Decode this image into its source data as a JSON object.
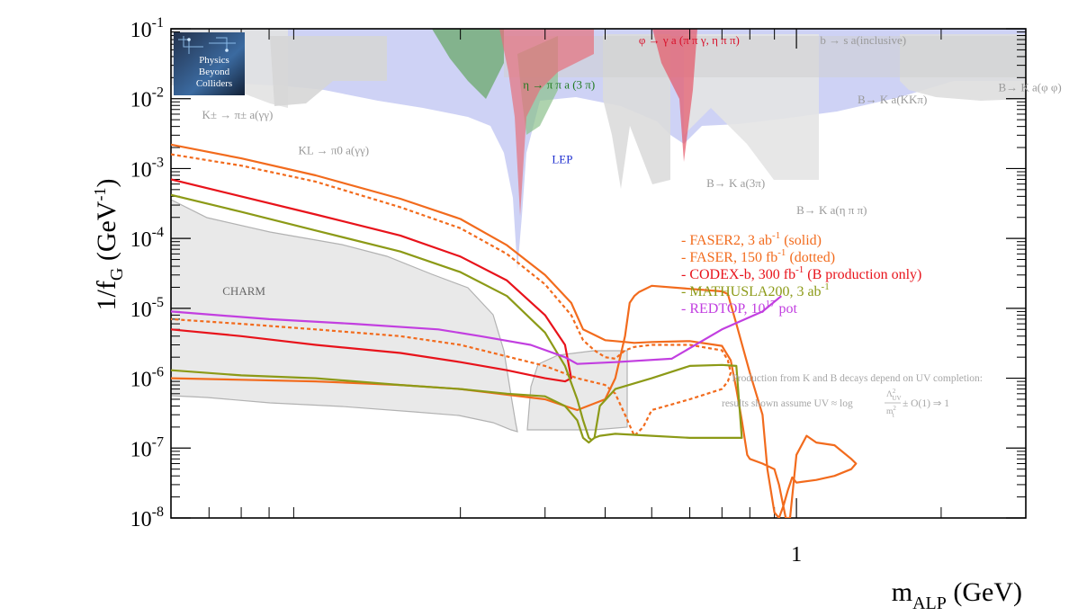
{
  "chart_data": {
    "type": "line",
    "x_axis": {
      "label_main": "m",
      "label_sub": "ALP",
      "label_unit": " (GeV)",
      "scale": "log",
      "range": [
        0.05,
        3.0
      ],
      "major_ticks": [
        1
      ],
      "major_tick_labels": [
        "1"
      ],
      "minor_ticks": [
        0.06,
        0.07,
        0.08,
        0.09,
        0.2,
        0.3,
        0.4,
        0.5,
        0.6,
        0.7,
        0.8,
        0.9,
        2,
        3
      ]
    },
    "y_axis": {
      "label_main": "1/f",
      "label_sub": "G",
      "label_unit_pre": " (GeV",
      "label_unit_sup": "-1",
      "label_unit_post": ")",
      "scale": "log",
      "range": [
        1e-08,
        0.1
      ],
      "tick_values": [
        1e-08,
        1e-07,
        1e-06,
        1e-05,
        0.0001,
        0.001,
        0.01,
        0.1
      ],
      "tick_exponents": [
        "-8",
        "-7",
        "-6",
        "-5",
        "-4",
        "-3",
        "-2",
        "-1"
      ],
      "tick_base": "10"
    },
    "regions": [
      {
        "label": "LEP",
        "color": "#c7cbf5"
      },
      {
        "label": "CHARM",
        "color": "#e9e9e9"
      }
    ],
    "region_labels": [
      {
        "text": "K± → π± a(γγ)",
        "x": 0.058,
        "y": 0.0052,
        "color": "#9a9a9a"
      },
      {
        "text": "KL → π0 a(γγ)",
        "x": 0.092,
        "y": 0.0016,
        "color": "#9a9a9a"
      },
      {
        "text": "η → π π a (3 π)",
        "x": 0.27,
        "y": 0.014,
        "color": "#1f7a1f"
      },
      {
        "text": "φ → γ a (π π γ, η π π)",
        "x": 0.47,
        "y": 0.06,
        "color": "#d8102a"
      },
      {
        "text": "b → s a(inclusive)",
        "x": 1.12,
        "y": 0.06,
        "color": "#9a9a9a"
      },
      {
        "text": "B→ K a(KKπ)",
        "x": 1.34,
        "y": 0.0085,
        "color": "#9a9a9a"
      },
      {
        "text": "B→ K a(φ φ)",
        "x": 2.63,
        "y": 0.0127,
        "color": "#9a9a9a"
      },
      {
        "text": "B→ K a(3π)",
        "x": 0.65,
        "y": 0.00054,
        "color": "#9a9a9a"
      },
      {
        "text": "B→ K a(η π π)",
        "x": 1.0,
        "y": 0.000225,
        "color": "#9a9a9a"
      },
      {
        "text": "LEP",
        "x": 0.31,
        "y": 0.0012,
        "color": "#2030d0"
      },
      {
        "text": "CHARM",
        "x": 0.064,
        "y": 1.55e-05,
        "color": "#666666"
      }
    ],
    "series": [
      {
        "name": "FASER2, 3 ab",
        "sup": "-1",
        "suffix": " (solid)",
        "color": "#f26b1d",
        "style": "solid",
        "x": [
          0.05,
          0.07,
          0.1,
          0.15,
          0.2,
          0.25,
          0.3,
          0.34,
          0.36,
          0.4,
          0.42,
          0.44,
          0.46,
          0.5,
          0.6,
          0.7,
          0.73,
          0.75,
          0.77,
          0.79,
          0.8,
          0.85,
          0.9,
          0.92,
          0.95,
          0.97,
          1.0,
          1.05,
          1.1,
          1.2,
          1.3,
          1.33,
          1.3,
          1.2,
          1.1,
          1.0,
          0.98,
          0.96,
          0.94,
          0.92,
          0.9,
          0.87,
          0.85,
          0.8,
          0.75,
          0.72,
          0.7,
          0.6,
          0.5,
          0.47,
          0.46,
          0.45,
          0.44,
          0.42,
          0.4,
          0.35,
          0.3,
          0.2,
          0.15,
          0.1,
          0.07,
          0.05
        ],
        "y": [
          0.0022,
          0.0014,
          0.0008,
          0.00037,
          0.00019,
          8e-05,
          3e-05,
          1.2e-05,
          5e-06,
          3.5e-06,
          3.4e-06,
          3.3e-06,
          3.2e-06,
          3.3e-06,
          3.4e-06,
          2.9e-06,
          1.8e-06,
          7e-07,
          2.5e-07,
          8e-08,
          7e-08,
          6e-08,
          5e-08,
          3e-08,
          1e-08,
          1e-08,
          8e-08,
          1.5e-07,
          1.2e-07,
          1.1e-07,
          7e-08,
          6e-08,
          5e-08,
          4e-08,
          3.5e-08,
          3.2e-08,
          3.8e-08,
          2.5e-08,
          1.5e-08,
          1e-08,
          1.2e-08,
          5e-08,
          3e-07,
          1.2e-06,
          6e-06,
          1.6e-05,
          1.75e-05,
          1.9e-05,
          2.1e-05,
          1.7e-05,
          1.5e-05,
          1.2e-05,
          4e-06,
          1e-06,
          5e-07,
          3.5e-07,
          5e-07,
          7e-07,
          8e-07,
          9e-07,
          9.5e-07,
          1e-06
        ]
      },
      {
        "name": "FASER, 150 fb",
        "sup": "-1",
        "suffix": " (dotted)",
        "color": "#f26b1d",
        "style": "dotted",
        "x": [
          0.05,
          0.07,
          0.1,
          0.15,
          0.2,
          0.25,
          0.3,
          0.34,
          0.36,
          0.38,
          0.4,
          0.42,
          0.43,
          0.44,
          0.46,
          0.5,
          0.6,
          0.7,
          0.72,
          0.73,
          0.72,
          0.7,
          0.6,
          0.5,
          0.48,
          0.46,
          0.44,
          0.42,
          0.4,
          0.35,
          0.3,
          0.2,
          0.15,
          0.1,
          0.07,
          0.05
        ],
        "y": [
          0.0016,
          0.0011,
          0.00065,
          0.00028,
          0.00014,
          6e-05,
          2.2e-05,
          8e-06,
          3.5e-06,
          2.5e-06,
          2e-06,
          1.9e-06,
          2.2e-06,
          2.5e-06,
          2.8e-06,
          3e-06,
          3e-06,
          2.5e-06,
          1.8e-06,
          1.2e-06,
          9e-07,
          7e-07,
          5e-07,
          3.5e-07,
          2e-07,
          1.5e-07,
          3e-07,
          6e-07,
          8e-07,
          1e-06,
          1.5e-06,
          3e-06,
          4e-06,
          5e-06,
          6e-06,
          7e-06
        ]
      },
      {
        "name": "CODEX-b, 300 fb",
        "sup": "-1",
        "suffix": " (B production only)",
        "color": "#e8131b",
        "style": "solid",
        "x": [
          0.05,
          0.07,
          0.1,
          0.15,
          0.2,
          0.25,
          0.3,
          0.33,
          0.34,
          0.33,
          0.3,
          0.25,
          0.2,
          0.15,
          0.1,
          0.07,
          0.05
        ],
        "y": [
          0.0007,
          0.0004,
          0.00022,
          0.00011,
          5.5e-05,
          2.5e-05,
          8e-06,
          3e-06,
          1e-06,
          9e-07,
          1e-06,
          1.3e-06,
          1.7e-06,
          2.3e-06,
          3e-06,
          4e-06,
          5e-06
        ]
      },
      {
        "name": "MATHUSLA200, 3 ab",
        "sup": "-1",
        "suffix": "",
        "color": "#8c9a17",
        "style": "solid",
        "x": [
          0.05,
          0.07,
          0.1,
          0.15,
          0.2,
          0.25,
          0.3,
          0.33,
          0.35,
          0.36,
          0.37,
          0.375,
          0.38,
          0.39,
          0.42,
          0.5,
          0.6,
          0.7,
          0.75,
          0.77,
          0.75,
          0.7,
          0.6,
          0.5,
          0.42,
          0.39,
          0.38,
          0.375,
          0.37,
          0.36,
          0.35,
          0.33,
          0.3,
          0.25,
          0.2,
          0.15,
          0.1,
          0.07,
          0.05
        ],
        "y": [
          0.00042,
          0.00024,
          0.00013,
          6.5e-05,
          3.3e-05,
          1.5e-05,
          4.5e-06,
          1.5e-06,
          5e-07,
          2.5e-07,
          1.4e-07,
          1.3e-07,
          1.4e-07,
          4e-07,
          7e-07,
          1e-06,
          1.5e-06,
          1.55e-06,
          1.5e-06,
          1.4e-07,
          1.4e-07,
          1.4e-07,
          1.4e-07,
          1.5e-07,
          1.6e-07,
          1.5e-07,
          1.4e-07,
          1.3e-07,
          1.2e-07,
          1.4e-07,
          2.5e-07,
          4e-07,
          5.5e-07,
          6e-07,
          7e-07,
          8e-07,
          1e-06,
          1.1e-06,
          1.3e-06
        ]
      },
      {
        "name": "REDTOP, 10",
        "sup": "17",
        "suffix": " pot",
        "color": "#c23fe0",
        "style": "solid",
        "x": [
          0.05,
          0.08,
          0.12,
          0.18,
          0.22,
          0.28,
          0.33,
          0.35,
          0.42,
          0.55,
          0.7,
          0.85,
          0.93
        ],
        "y": [
          9e-06,
          7e-06,
          6e-06,
          5e-06,
          4e-06,
          3e-06,
          2e-06,
          1.6e-06,
          1.7e-06,
          1.9e-06,
          5e-06,
          9e-06,
          1.5e-05
        ]
      }
    ],
    "legend": {
      "position": "right-middle",
      "prefix": "- "
    },
    "note": {
      "line1": "Production from K and B decays depend on UV completion:",
      "line2_pre": "results shown assume UV ≈ log",
      "frac_num": "Λ",
      "frac_num_sup": "2",
      "frac_num_sub": "UV",
      "frac_den": "m",
      "frac_den_sup": "2",
      "frac_den_sub": "t",
      "line2_post": " ± O(1) ⇒ 1",
      "color": "#a6a6a6"
    },
    "logo": {
      "lines": [
        "Physics",
        "Beyond",
        "Colliders"
      ]
    }
  }
}
